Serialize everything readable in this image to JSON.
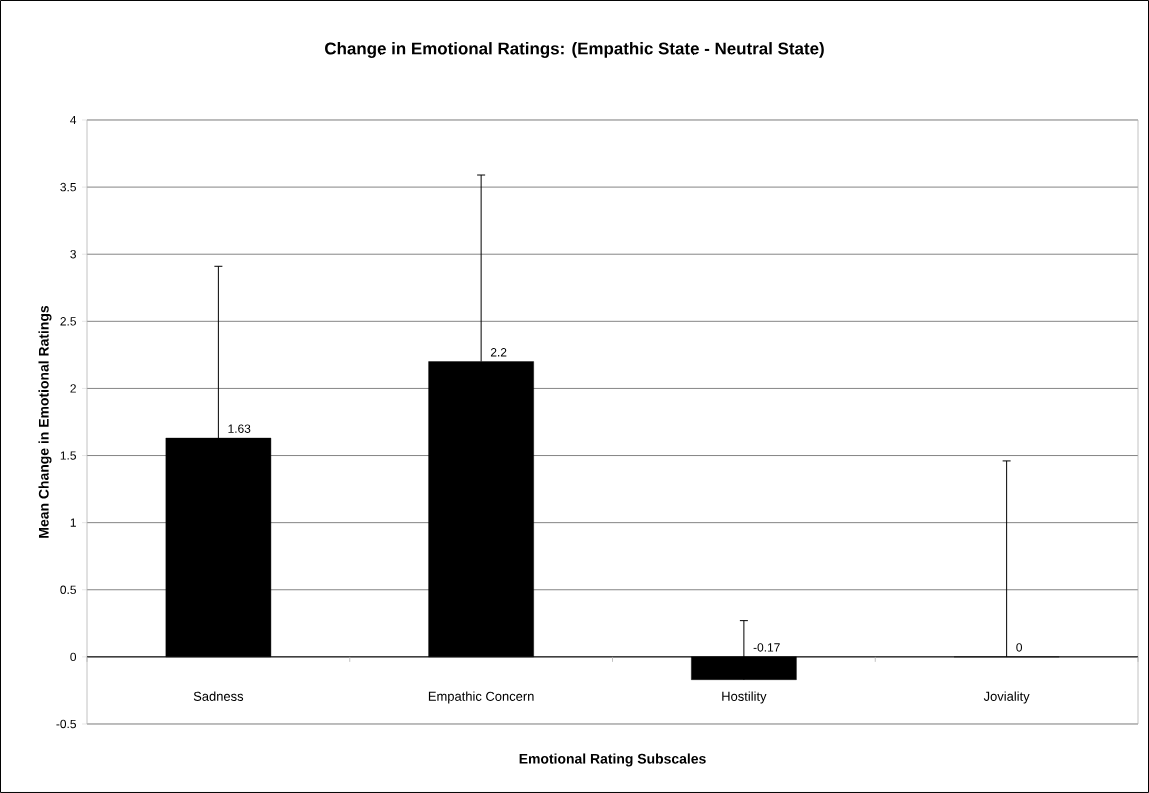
{
  "chart_data": {
    "type": "bar",
    "title": "Change in Emotional Ratings: (Empathic State - Neutral State)",
    "xlabel": "Emotional Rating Subscales",
    "ylabel": "Mean Change in Emotional Ratings",
    "categories": [
      "Sadness",
      "Empathic Concern",
      "Hostility",
      "Joviality"
    ],
    "values": [
      1.63,
      2.2,
      -0.17,
      0
    ],
    "value_labels": [
      "1.63",
      "2.2",
      "-0.17",
      "0"
    ],
    "errors": [
      [
        1.63,
        2.91
      ],
      [
        2.2,
        3.59
      ],
      [
        -0.17,
        0.27
      ],
      [
        0,
        1.46
      ]
    ],
    "color": "#000000",
    "ylim": [
      -0.5,
      4
    ],
    "yticks": [
      -0.5,
      0,
      0.5,
      1,
      1.5,
      2,
      2.5,
      3,
      3.5,
      4
    ],
    "grid": "y"
  }
}
